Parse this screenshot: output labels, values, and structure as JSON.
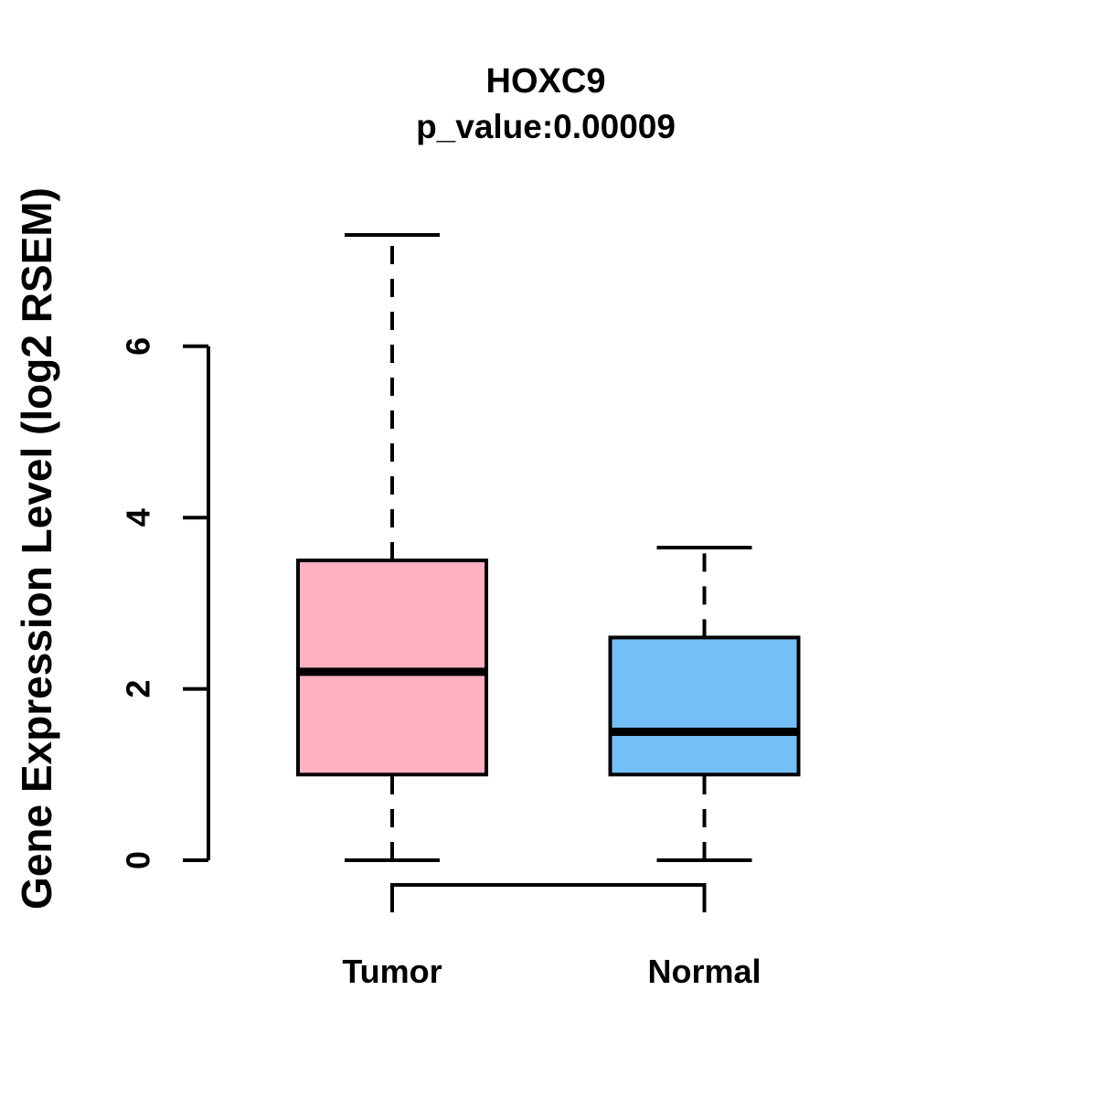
{
  "title": "HOXC9",
  "subtitle": "p_value:0.00009",
  "colors": {
    "tumor_fill": "#ffb0c1",
    "normal_fill": "#74bff8",
    "stroke": "#000000",
    "background": "#ffffff"
  },
  "chart_data": {
    "type": "boxplot",
    "title": "HOXC9",
    "subtitle": "p_value:0.00009",
    "ylabel": "Gene Expression Level (log2 RSEM)",
    "xlabel": "",
    "categories": [
      "Tumor",
      "Normal"
    ],
    "yticks": [
      0,
      2,
      4,
      6
    ],
    "ylim": [
      0,
      7.3
    ],
    "grid": false,
    "legend": "none",
    "series": [
      {
        "name": "Tumor",
        "min": 0,
        "q1": 1.0,
        "median": 2.2,
        "q3": 3.5,
        "max": 7.3,
        "fill": "#ffb0c1",
        "outliers": []
      },
      {
        "name": "Normal",
        "min": 0,
        "q1": 1.0,
        "median": 1.5,
        "q3": 2.6,
        "max": 3.65,
        "fill": "#74bff8",
        "outliers": []
      }
    ]
  }
}
